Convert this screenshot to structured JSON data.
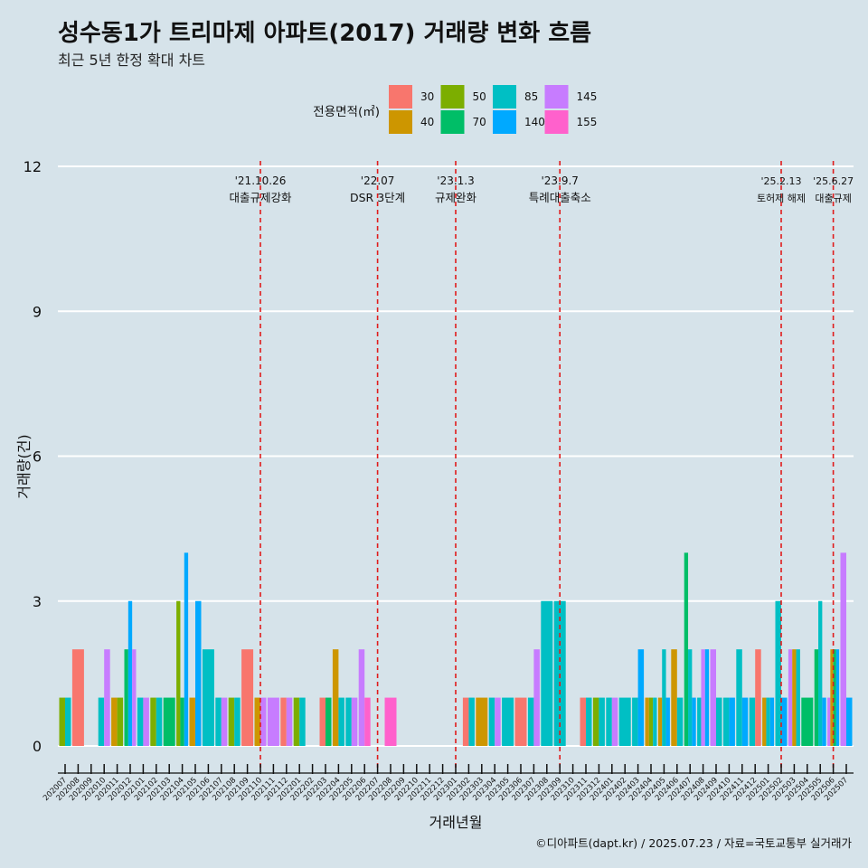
{
  "header": {
    "title": "성수동1가 트리마제 아파트(2017) 거래량 변화 흐름",
    "subtitle": "최근 5년 한정 확대 차트"
  },
  "caption": "©디아파트(dapt.kr) / 2025.07.23 / 자료=국토교통부 실거래가",
  "chart_data": {
    "type": "bar",
    "stacked": false,
    "title": "성수동1가 트리마제 아파트(2017) 거래량 변화 흐름",
    "xlabel": "거래년월",
    "ylabel": "거래량(건)",
    "ylim": [
      0,
      12
    ],
    "yticks": [
      0,
      3,
      6,
      9,
      12
    ],
    "legend": {
      "title": "전용면적(㎡)",
      "position": "top",
      "entries": [
        {
          "name": "30",
          "color": "#F8766D"
        },
        {
          "name": "40",
          "color": "#CD9600"
        },
        {
          "name": "50",
          "color": "#7CAE00"
        },
        {
          "name": "70",
          "color": "#00BE67"
        },
        {
          "name": "85",
          "color": "#00BFC4"
        },
        {
          "name": "140",
          "color": "#00A9FF"
        },
        {
          "name": "145",
          "color": "#C77CFF"
        },
        {
          "name": "155",
          "color": "#FF61CC"
        }
      ]
    },
    "months": [
      "202007",
      "202008",
      "202009",
      "202010",
      "202011",
      "202012",
      "202101",
      "202102",
      "202103",
      "202104",
      "202105",
      "202106",
      "202107",
      "202108",
      "202109",
      "202110",
      "202111",
      "202112",
      "202201",
      "202202",
      "202203",
      "202204",
      "202205",
      "202206",
      "202207",
      "202208",
      "202209",
      "202210",
      "202211",
      "202212",
      "202301",
      "202302",
      "202303",
      "202304",
      "202305",
      "202306",
      "202307",
      "202308",
      "202309",
      "202310",
      "202311",
      "202312",
      "202401",
      "202402",
      "202403",
      "202404",
      "202405",
      "202406",
      "202407",
      "202408",
      "202409",
      "202410",
      "202411",
      "202412",
      "202501",
      "202502",
      "202503",
      "202504",
      "202505",
      "202506",
      "202507"
    ],
    "data": [
      {
        "month": "202007",
        "bars": [
          [
            "50",
            1
          ],
          [
            "85",
            1
          ]
        ]
      },
      {
        "month": "202008",
        "bars": [
          [
            "30",
            2
          ]
        ]
      },
      {
        "month": "202010",
        "bars": [
          [
            "85",
            1
          ],
          [
            "145",
            2
          ]
        ]
      },
      {
        "month": "202011",
        "bars": [
          [
            "40",
            1
          ],
          [
            "50",
            1
          ]
        ]
      },
      {
        "month": "202012",
        "bars": [
          [
            "70",
            2
          ],
          [
            "140",
            3
          ],
          [
            "145",
            2
          ]
        ]
      },
      {
        "month": "202101",
        "bars": [
          [
            "85",
            1
          ],
          [
            "145",
            1
          ]
        ]
      },
      {
        "month": "202102",
        "bars": [
          [
            "50",
            1
          ],
          [
            "85",
            1
          ]
        ]
      },
      {
        "month": "202103",
        "bars": [
          [
            "70",
            1
          ]
        ]
      },
      {
        "month": "202104",
        "bars": [
          [
            "50",
            3
          ],
          [
            "70",
            1
          ],
          [
            "140",
            4
          ]
        ]
      },
      {
        "month": "202105",
        "bars": [
          [
            "40",
            1
          ],
          [
            "140",
            3
          ]
        ]
      },
      {
        "month": "202106",
        "bars": [
          [
            "85",
            2
          ]
        ]
      },
      {
        "month": "202107",
        "bars": [
          [
            "85",
            1
          ],
          [
            "145",
            1
          ]
        ]
      },
      {
        "month": "202108",
        "bars": [
          [
            "50",
            1
          ],
          [
            "85",
            1
          ]
        ]
      },
      {
        "month": "202109",
        "bars": [
          [
            "30",
            2
          ]
        ]
      },
      {
        "month": "202110",
        "bars": [
          [
            "40",
            1
          ],
          [
            "145",
            1
          ]
        ]
      },
      {
        "month": "202111",
        "bars": [
          [
            "145",
            1
          ]
        ]
      },
      {
        "month": "202112",
        "bars": [
          [
            "30",
            1
          ],
          [
            "145",
            1
          ]
        ]
      },
      {
        "month": "202201",
        "bars": [
          [
            "50",
            1
          ],
          [
            "85",
            1
          ]
        ]
      },
      {
        "month": "202203",
        "bars": [
          [
            "30",
            1
          ],
          [
            "70",
            1
          ]
        ]
      },
      {
        "month": "202204",
        "bars": [
          [
            "40",
            2
          ],
          [
            "85",
            1
          ]
        ]
      },
      {
        "month": "202205",
        "bars": [
          [
            "85",
            1
          ],
          [
            "145",
            1
          ]
        ]
      },
      {
        "month": "202206",
        "bars": [
          [
            "145",
            2
          ],
          [
            "155",
            1
          ]
        ]
      },
      {
        "month": "202208",
        "bars": [
          [
            "155",
            1
          ]
        ]
      },
      {
        "month": "202302",
        "bars": [
          [
            "30",
            1
          ],
          [
            "85",
            1
          ]
        ]
      },
      {
        "month": "202303",
        "bars": [
          [
            "40",
            1
          ]
        ]
      },
      {
        "month": "202304",
        "bars": [
          [
            "85",
            1
          ],
          [
            "145",
            1
          ]
        ]
      },
      {
        "month": "202305",
        "bars": [
          [
            "85",
            1
          ]
        ]
      },
      {
        "month": "202306",
        "bars": [
          [
            "30",
            1
          ]
        ]
      },
      {
        "month": "202307",
        "bars": [
          [
            "85",
            1
          ],
          [
            "145",
            2
          ]
        ]
      },
      {
        "month": "202308",
        "bars": [
          [
            "85",
            3
          ]
        ]
      },
      {
        "month": "202309",
        "bars": [
          [
            "85",
            3
          ]
        ]
      },
      {
        "month": "202311",
        "bars": [
          [
            "30",
            1
          ],
          [
            "85",
            1
          ]
        ]
      },
      {
        "month": "202312",
        "bars": [
          [
            "50",
            1
          ],
          [
            "85",
            1
          ]
        ]
      },
      {
        "month": "202401",
        "bars": [
          [
            "85",
            1
          ],
          [
            "145",
            1
          ]
        ]
      },
      {
        "month": "202402",
        "bars": [
          [
            "85",
            1
          ]
        ]
      },
      {
        "month": "202403",
        "bars": [
          [
            "85",
            1
          ],
          [
            "140",
            2
          ]
        ]
      },
      {
        "month": "202404",
        "bars": [
          [
            "40",
            1
          ],
          [
            "50",
            1
          ],
          [
            "85",
            1
          ]
        ]
      },
      {
        "month": "202405",
        "bars": [
          [
            "40",
            1
          ],
          [
            "85",
            2
          ],
          [
            "140",
            1
          ]
        ]
      },
      {
        "month": "202406",
        "bars": [
          [
            "40",
            2
          ],
          [
            "85",
            1
          ]
        ]
      },
      {
        "month": "202407",
        "bars": [
          [
            "70",
            4
          ],
          [
            "85",
            2
          ],
          [
            "140",
            1
          ]
        ]
      },
      {
        "month": "202408",
        "bars": [
          [
            "85",
            1
          ],
          [
            "145",
            2
          ],
          [
            "140",
            2
          ]
        ]
      },
      {
        "month": "202409",
        "bars": [
          [
            "145",
            2
          ],
          [
            "85",
            1
          ]
        ]
      },
      {
        "month": "202410",
        "bars": [
          [
            "85",
            1
          ],
          [
            "140",
            1
          ]
        ]
      },
      {
        "month": "202411",
        "bars": [
          [
            "85",
            2
          ],
          [
            "140",
            1
          ]
        ]
      },
      {
        "month": "202412",
        "bars": [
          [
            "85",
            1
          ],
          [
            "30",
            2
          ]
        ]
      },
      {
        "month": "202501",
        "bars": [
          [
            "40",
            1
          ],
          [
            "85",
            1
          ],
          [
            "140",
            1
          ]
        ]
      },
      {
        "month": "202502",
        "bars": [
          [
            "85",
            3
          ],
          [
            "140",
            1
          ]
        ]
      },
      {
        "month": "202503",
        "bars": [
          [
            "145",
            2
          ],
          [
            "40",
            2
          ],
          [
            "85",
            2
          ]
        ]
      },
      {
        "month": "202504",
        "bars": [
          [
            "70",
            1
          ]
        ]
      },
      {
        "month": "202505",
        "bars": [
          [
            "70",
            2
          ],
          [
            "85",
            3
          ],
          [
            "140",
            1
          ]
        ]
      },
      {
        "month": "202506",
        "bars": [
          [
            "145",
            1
          ],
          [
            "40",
            2
          ],
          [
            "70",
            2
          ],
          [
            "140",
            2
          ]
        ]
      },
      {
        "month": "202507",
        "bars": [
          [
            "145",
            4
          ],
          [
            "140",
            1
          ]
        ]
      }
    ],
    "annotations": [
      {
        "month": "202110",
        "date": "'21.10.26",
        "label": "대출규제강화"
      },
      {
        "month": "202207",
        "date": "'22.07",
        "label": "DSR 3단계"
      },
      {
        "month": "202301",
        "date": "'23.1.3",
        "label": "규제완화"
      },
      {
        "month": "202309",
        "date": "'23.9.7",
        "label": "특례대출축소"
      },
      {
        "month": "202502",
        "date": "'25.2.13",
        "label": "토허제 해제"
      },
      {
        "month": "202506",
        "date": "'25.6.27",
        "label": "대출규제"
      }
    ]
  }
}
